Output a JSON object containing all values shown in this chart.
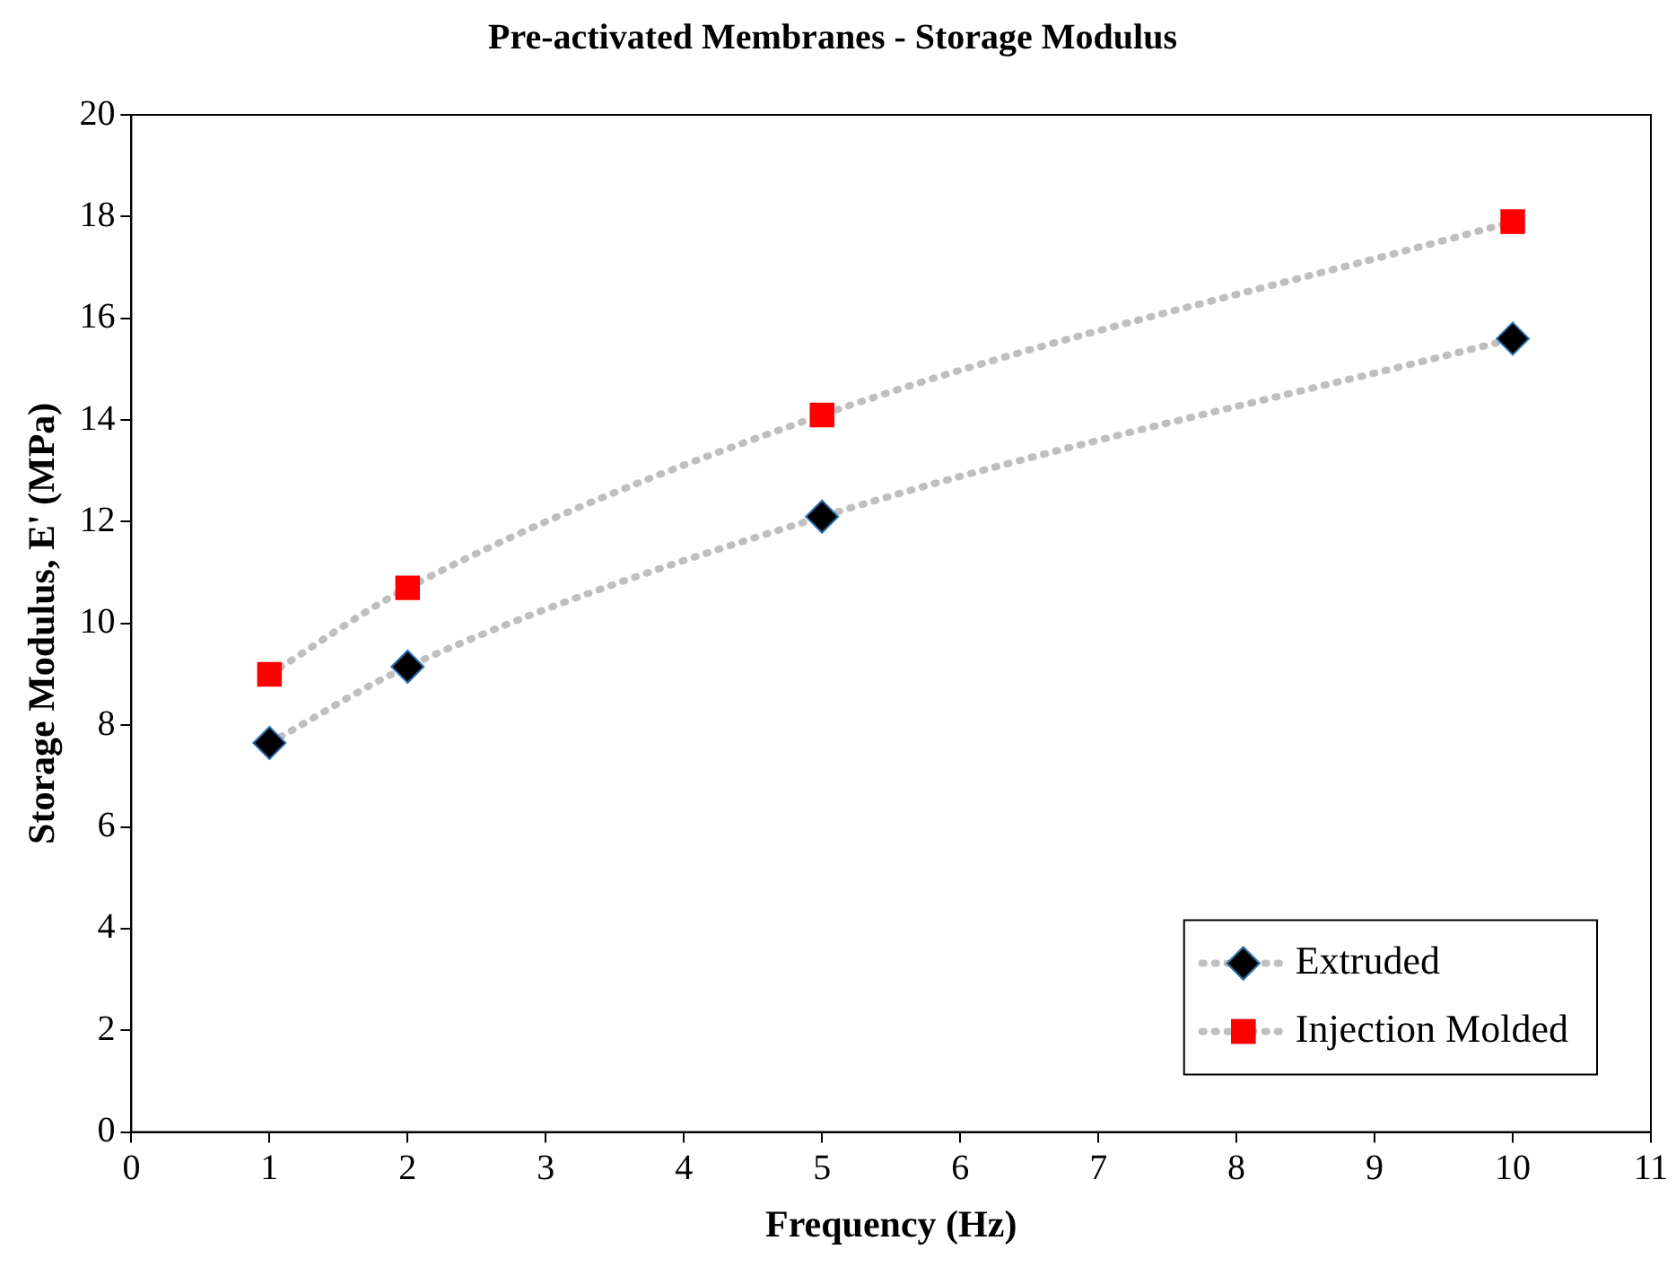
{
  "chart_data": {
    "type": "scatter",
    "title": "Pre-activated Membranes - Storage Modulus",
    "xlabel": "Frequency (Hz)",
    "ylabel": "Storage Modulus, E' (MPa)",
    "xlim": [
      0,
      11
    ],
    "xticks": [
      0,
      1,
      2,
      3,
      4,
      5,
      6,
      7,
      8,
      9,
      10,
      11
    ],
    "ylim": [
      0,
      20
    ],
    "yticks": [
      0,
      2,
      4,
      6,
      8,
      10,
      12,
      14,
      16,
      18,
      20
    ],
    "grid": false,
    "legend": "bottom right",
    "series": [
      {
        "type": "line",
        "color": "#bfbfbf",
        "line_style": "dotted",
        "marker": "none",
        "x": [
          1,
          2,
          5,
          10
        ],
        "values": [
          7.65,
          9.15,
          12.1,
          15.6
        ]
      },
      {
        "type": "line",
        "color": "#bfbfbf",
        "line_style": "dotted",
        "marker": "none",
        "x": [
          1,
          2,
          5,
          10
        ],
        "values": [
          9.0,
          10.7,
          14.1,
          17.9
        ]
      },
      {
        "type": "scatter",
        "name": "Extruded",
        "color": "#000000",
        "marker": "diamond",
        "x": [
          1,
          2,
          5,
          10
        ],
        "values": [
          7.65,
          9.15,
          12.1,
          15.6
        ]
      },
      {
        "type": "scatter",
        "name": "Injection Molded",
        "color": "#ff0000",
        "marker": "square",
        "x": [
          1,
          2,
          5,
          10
        ],
        "values": [
          9.0,
          10.7,
          14.1,
          17.9
        ]
      }
    ]
  }
}
